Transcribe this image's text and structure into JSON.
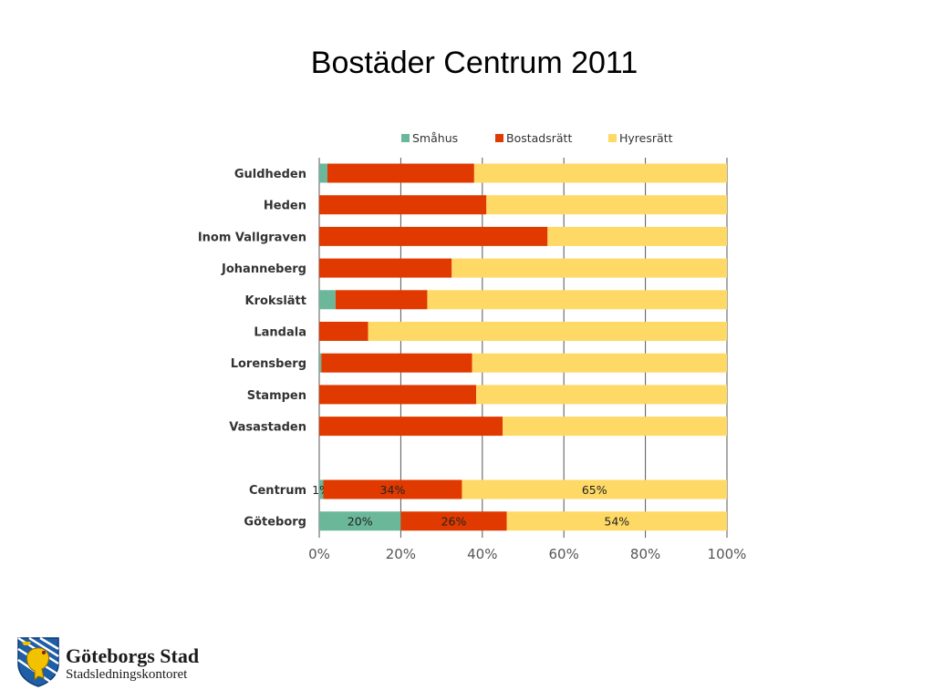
{
  "slide": {
    "title": "Bostäder Centrum 2011"
  },
  "footer": {
    "org": "Göteborgs Stad",
    "department": "Stadsledningskontoret"
  },
  "chart_data": {
    "type": "bar",
    "orientation": "horizontal",
    "stacked": "percent",
    "categories": [
      "Guldheden",
      "Heden",
      "Inom Vallgraven",
      "Johanneberg",
      "Krokslätt",
      "Landala",
      "Lorensberg",
      "Stampen",
      "Vasastaden",
      "",
      "Centrum",
      "Göteborg"
    ],
    "series": [
      {
        "name": "Småhus",
        "color": "#6ab79a",
        "values": [
          2,
          0,
          0,
          0,
          4,
          0,
          0.5,
          0,
          0,
          null,
          1,
          20
        ],
        "labels": [
          "",
          "",
          "",
          "",
          "",
          "",
          "",
          "",
          "",
          "",
          "1%",
          "20%"
        ]
      },
      {
        "name": "Bostadsrätt",
        "color": "#e03a00",
        "values": [
          36,
          41,
          56,
          32.5,
          22.5,
          12,
          37,
          38.5,
          45,
          null,
          34,
          26
        ],
        "labels": [
          "",
          "",
          "",
          "",
          "",
          "",
          "",
          "",
          "",
          "",
          "34%",
          "26%"
        ]
      },
      {
        "name": "Hyresrätt",
        "color": "#ffd966",
        "values": [
          62,
          59,
          44,
          67.5,
          73.5,
          88,
          62.5,
          61.5,
          55,
          null,
          65,
          54
        ],
        "labels": [
          "",
          "",
          "",
          "",
          "",
          "",
          "",
          "",
          "",
          "",
          "65%",
          "54%"
        ]
      }
    ],
    "xticks": [
      "0%",
      "20%",
      "40%",
      "60%",
      "80%",
      "100%"
    ],
    "xlim": [
      0,
      100
    ],
    "grid": true,
    "legend": "top"
  }
}
